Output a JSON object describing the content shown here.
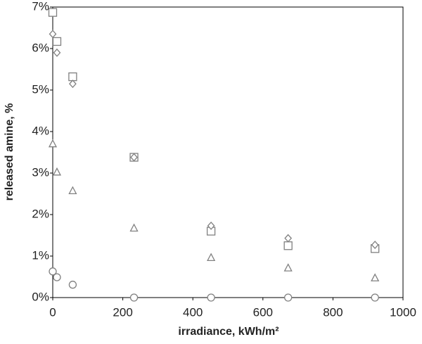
{
  "chart_data": {
    "type": "scatter",
    "x_label": "irradiance, kWh/m²",
    "y_label": "released amine, %",
    "x": [
      0,
      12,
      57,
      232,
      452,
      672,
      920
    ],
    "series": [
      {
        "color": "#808080",
        "marker": "square",
        "values": [
          6.87,
          6.17,
          5.32,
          3.38,
          1.6,
          1.25,
          1.18
        ]
      },
      {
        "color": "#808080",
        "marker": "diamond",
        "values": [
          6.35,
          5.9,
          5.15,
          3.38,
          1.73,
          1.43,
          1.27
        ]
      },
      {
        "color": "#808080",
        "marker": "triangle",
        "values": [
          3.7,
          3.02,
          2.57,
          1.67,
          0.96,
          0.71,
          0.47
        ]
      },
      {
        "color": "#808080",
        "marker": "circle",
        "values": [
          0.63,
          0.49,
          0.31,
          0,
          0,
          0,
          0
        ]
      }
    ],
    "xlim": [
      0,
      1000
    ],
    "xticks": [
      0,
      200,
      400,
      600,
      800,
      1000
    ],
    "ylim": [
      0,
      7
    ],
    "yticks": [
      {
        "value": 0,
        "label": "0%"
      },
      {
        "value": 1,
        "label": "1%"
      },
      {
        "value": 2,
        "label": "2%"
      },
      {
        "value": 3,
        "label": "3%"
      },
      {
        "value": 4,
        "label": "4%"
      },
      {
        "value": 5,
        "label": "5%"
      },
      {
        "value": 6,
        "label": "6%"
      },
      {
        "value": 7,
        "label": "7%"
      }
    ],
    "grid": false
  }
}
